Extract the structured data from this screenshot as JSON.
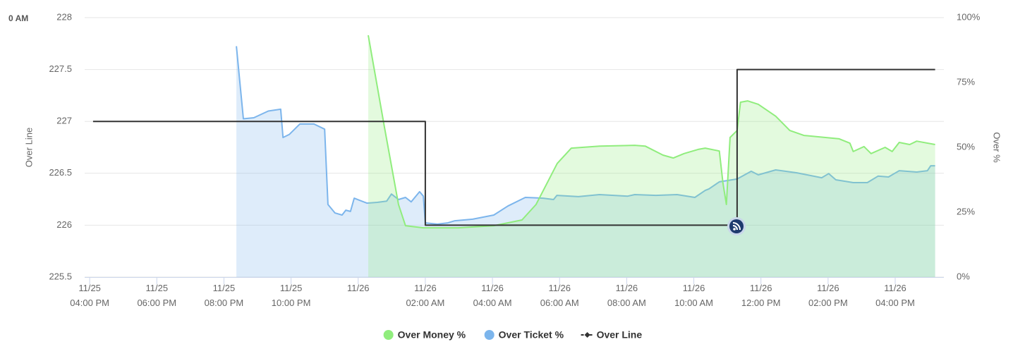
{
  "chart_data": {
    "type": "line",
    "corner_text": "0 AM",
    "y_label": "Over Line",
    "y2_label": "Over %",
    "xlim": [
      -0.15,
      25.45
    ],
    "ylim": [
      225.5,
      228
    ],
    "y2lim": [
      0,
      100
    ],
    "yticks": [
      225.5,
      226,
      226.5,
      227,
      227.5,
      228
    ],
    "y2ticks": [
      {
        "value": 0,
        "label": "0%"
      },
      {
        "value": 25,
        "label": "25%"
      },
      {
        "value": 50,
        "label": "50%"
      },
      {
        "value": 75,
        "label": "75%"
      },
      {
        "value": 100,
        "label": "100%"
      }
    ],
    "xticks": [
      {
        "value": 0,
        "label": "11/25 04:00 PM"
      },
      {
        "value": 2,
        "label": "11/25 06:00 PM"
      },
      {
        "value": 4,
        "label": "11/25 08:00 PM"
      },
      {
        "value": 6,
        "label": "11/25 10:00 PM"
      },
      {
        "value": 8,
        "label": "11/26"
      },
      {
        "value": 10,
        "label": "11/26 02:00 AM"
      },
      {
        "value": 12,
        "label": "11/26 04:00 AM"
      },
      {
        "value": 14,
        "label": "11/26 06:00 AM"
      },
      {
        "value": 16,
        "label": "11/26 08:00 AM"
      },
      {
        "value": 18,
        "label": "11/26 10:00 AM"
      },
      {
        "value": 20,
        "label": "11/26 12:00 PM"
      },
      {
        "value": 22,
        "label": "11/26 02:00 PM"
      },
      {
        "value": 24,
        "label": "11/26 04:00 PM"
      }
    ],
    "grid": true,
    "series": [
      {
        "name": "Over Money %",
        "color": "#90ed7d",
        "type": "area",
        "axis": "y2",
        "x": [
          8.3,
          8.78,
          9.2,
          9.41,
          9.94,
          10.99,
          12.04,
          12.88,
          13.3,
          13.93,
          14.35,
          15.19,
          16.24,
          16.55,
          17.08,
          17.39,
          17.71,
          18.13,
          18.34,
          18.76,
          18.87,
          18.97,
          19.08,
          19.29,
          19.39,
          19.6,
          19.92,
          20.44,
          20.86,
          21.28,
          22.33,
          22.65,
          22.75,
          23.07,
          23.28,
          23.7,
          23.91,
          24.12,
          24.43,
          24.64,
          25.19
        ],
        "values": [
          93.2,
          57.9,
          28,
          19.8,
          19,
          19,
          19.8,
          22,
          28,
          43.8,
          49.7,
          50.5,
          50.8,
          50.5,
          47,
          45.9,
          47.6,
          49.2,
          49.7,
          48.6,
          36.1,
          28,
          53.8,
          56.5,
          67.4,
          67.9,
          66.6,
          62,
          56.5,
          54.6,
          53.3,
          51.6,
          48.4,
          50.3,
          47.6,
          50,
          48.4,
          51.9,
          51.1,
          52.4,
          51.1
        ]
      },
      {
        "name": "Over Ticket %",
        "color": "#7cb5ec",
        "type": "area",
        "axis": "y2",
        "x": [
          4.37,
          4.58,
          4.89,
          5.32,
          5.69,
          5.76,
          5.95,
          6.26,
          6.68,
          7.0,
          7.1,
          7.31,
          7.52,
          7.63,
          7.77,
          7.88,
          8.26,
          8.57,
          8.85,
          8.99,
          9.2,
          9.41,
          9.58,
          9.83,
          9.94,
          10.0,
          10.36,
          10.67,
          10.88,
          11.41,
          12.04,
          12.46,
          12.98,
          13.51,
          13.82,
          13.92,
          14.56,
          15.19,
          16.03,
          16.24,
          16.87,
          17.5,
          18.03,
          18.34,
          18.45,
          18.76,
          19.29,
          19.71,
          19.92,
          20.44,
          21.07,
          21.81,
          22.02,
          22.23,
          22.75,
          23.17,
          23.49,
          23.8,
          24.12,
          24.64,
          24.96,
          25.06,
          25.19
        ],
        "values": [
          89,
          61,
          61.4,
          64,
          64.7,
          53.8,
          55,
          59,
          59,
          57,
          28,
          24.7,
          23.9,
          25.8,
          25.3,
          30.4,
          28.5,
          28.8,
          29.3,
          32,
          29.9,
          30.7,
          29,
          32.9,
          31.2,
          20.9,
          20.4,
          20.9,
          21.7,
          22.3,
          23.9,
          27.4,
          30.7,
          30.4,
          29.9,
          31.5,
          31,
          31.8,
          31.2,
          31.8,
          31.5,
          31.8,
          30.7,
          33.4,
          34,
          36.7,
          37.8,
          40.8,
          39.4,
          41.3,
          40.2,
          38.3,
          39.9,
          37.5,
          36.4,
          36.4,
          38.9,
          38.6,
          41,
          40.5,
          41,
          42.9,
          42.9
        ]
      },
      {
        "name": "Over Line",
        "color": "#333333",
        "type": "line",
        "axis": "y",
        "x": [
          0.1,
          10,
          10,
          19.29,
          19.29,
          25.19
        ],
        "values": [
          227,
          227,
          226,
          226,
          227.5,
          227.5
        ]
      }
    ]
  }
}
